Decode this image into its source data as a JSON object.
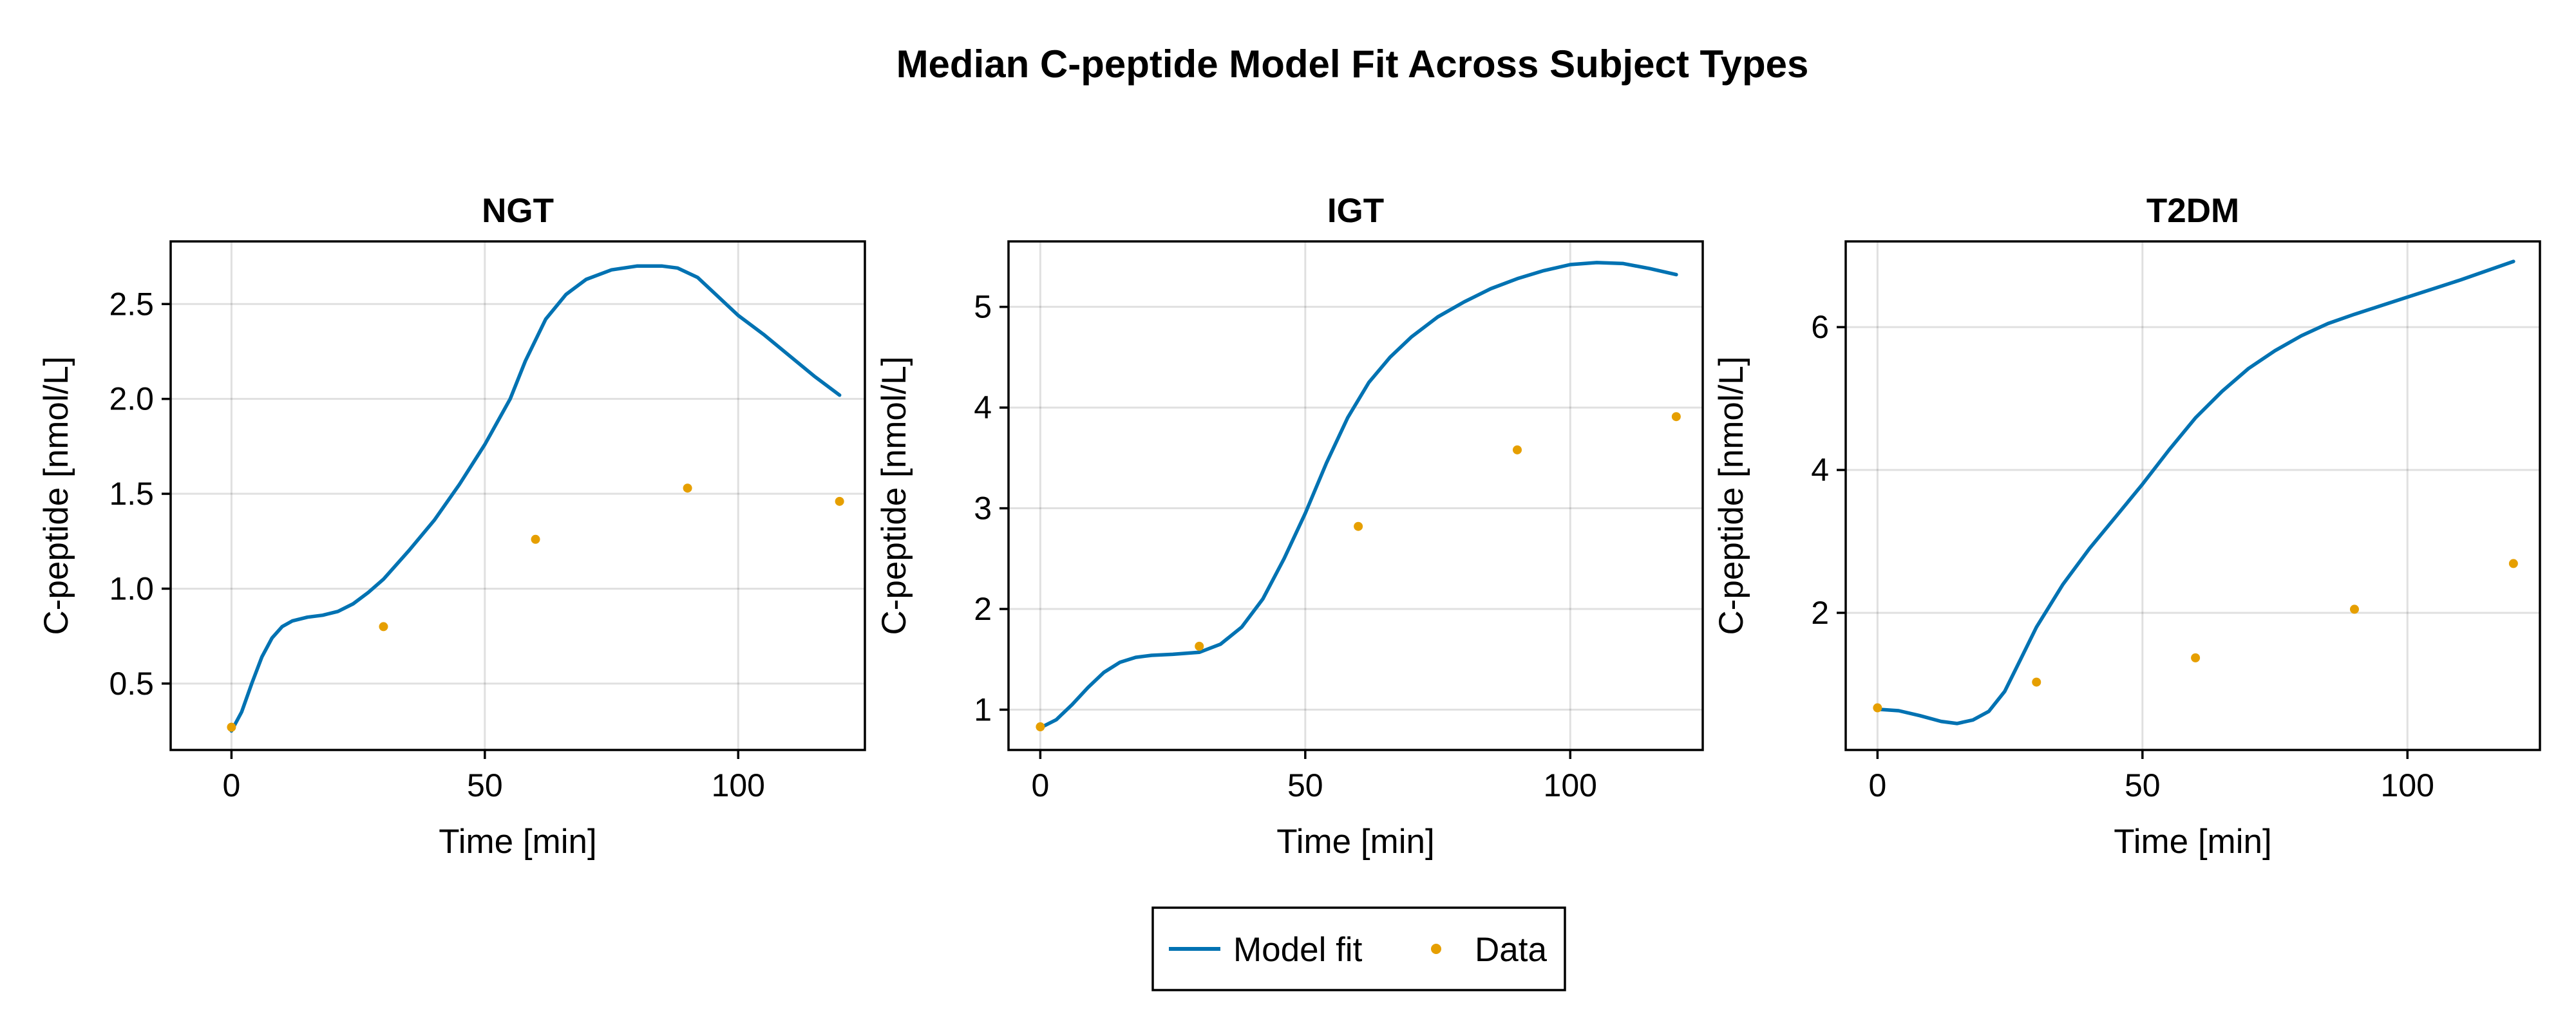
{
  "chart_data": {
    "title": "Median C-peptide Model Fit Across Subject Types",
    "legend": {
      "placement": "bottom-center",
      "entries": [
        {
          "label": "Model fit",
          "kind": "line",
          "color": "#0072b2"
        },
        {
          "label": "Data",
          "kind": "marker",
          "color": "#e69f00"
        }
      ]
    },
    "panels": [
      {
        "type": "line",
        "title": "NGT",
        "xlabel": "Time [min]",
        "ylabel": "C-peptide [nmol/L]",
        "xlim": [
          -12,
          125
        ],
        "ylim": [
          0.15,
          2.83
        ],
        "xticks": [
          0,
          50,
          100
        ],
        "yticks": [
          0.5,
          1.0,
          1.5,
          2.0,
          2.5
        ],
        "ytick_labels": [
          "0.5",
          "1.0",
          "1.5",
          "2.0",
          "2.5"
        ],
        "grid": true,
        "series": [
          {
            "name": "Model fit",
            "type": "line",
            "color": "#0072b2",
            "x": [
              0,
              2,
              4,
              6,
              8,
              10,
              12,
              15,
              18,
              21,
              24,
              27,
              30,
              35,
              40,
              45,
              50,
              55,
              58,
              62,
              66,
              70,
              75,
              80,
              85,
              88,
              92,
              96,
              100,
              105,
              110,
              115,
              120
            ],
            "y": [
              0.25,
              0.35,
              0.5,
              0.64,
              0.74,
              0.8,
              0.83,
              0.85,
              0.86,
              0.88,
              0.92,
              0.98,
              1.05,
              1.2,
              1.36,
              1.55,
              1.76,
              2.0,
              2.2,
              2.42,
              2.55,
              2.63,
              2.68,
              2.7,
              2.7,
              2.69,
              2.64,
              2.54,
              2.44,
              2.34,
              2.23,
              2.12,
              2.02
            ]
          },
          {
            "name": "Data",
            "type": "scatter",
            "color": "#e69f00",
            "x": [
              0,
              30,
              60,
              90,
              120
            ],
            "y": [
              0.27,
              0.8,
              1.26,
              1.53,
              1.46
            ]
          }
        ]
      },
      {
        "type": "line",
        "title": "IGT",
        "xlabel": "Time [min]",
        "ylabel": "C-peptide [nmol/L]",
        "xlim": [
          -6,
          125
        ],
        "ylim": [
          0.6,
          5.65
        ],
        "xticks": [
          0,
          50,
          100
        ],
        "yticks": [
          1,
          2,
          3,
          4,
          5
        ],
        "ytick_labels": [
          "1",
          "2",
          "3",
          "4",
          "5"
        ],
        "grid": true,
        "series": [
          {
            "name": "Model fit",
            "type": "line",
            "color": "#0072b2",
            "x": [
              0,
              3,
              6,
              9,
              12,
              15,
              18,
              21,
              25,
              30,
              34,
              38,
              42,
              46,
              50,
              54,
              58,
              62,
              66,
              70,
              75,
              80,
              85,
              90,
              95,
              100,
              105,
              110,
              115,
              120
            ],
            "y": [
              0.82,
              0.9,
              1.05,
              1.22,
              1.37,
              1.47,
              1.52,
              1.54,
              1.55,
              1.57,
              1.65,
              1.82,
              2.1,
              2.5,
              2.95,
              3.45,
              3.9,
              4.25,
              4.5,
              4.7,
              4.9,
              5.05,
              5.18,
              5.28,
              5.36,
              5.42,
              5.44,
              5.43,
              5.38,
              5.32
            ]
          },
          {
            "name": "Data",
            "type": "scatter",
            "color": "#e69f00",
            "x": [
              0,
              30,
              60,
              90,
              120
            ],
            "y": [
              0.83,
              1.63,
              2.82,
              3.58,
              3.91
            ]
          }
        ]
      },
      {
        "type": "line",
        "title": "T2DM",
        "xlabel": "Time [min]",
        "ylabel": "C-peptide [nmol/L]",
        "xlim": [
          -6,
          125
        ],
        "ylim": [
          0.08,
          7.2
        ],
        "xticks": [
          0,
          50,
          100
        ],
        "yticks": [
          2,
          4,
          6
        ],
        "ytick_labels": [
          "2",
          "4",
          "6"
        ],
        "grid": true,
        "series": [
          {
            "name": "Model fit",
            "type": "line",
            "color": "#0072b2",
            "x": [
              0,
              4,
              8,
              12,
              15,
              18,
              21,
              24,
              27,
              30,
              35,
              40,
              45,
              50,
              55,
              60,
              65,
              70,
              75,
              80,
              85,
              90,
              95,
              100,
              105,
              110,
              115,
              120
            ],
            "y": [
              0.65,
              0.63,
              0.56,
              0.48,
              0.45,
              0.5,
              0.62,
              0.9,
              1.35,
              1.8,
              2.4,
              2.9,
              3.35,
              3.8,
              4.28,
              4.73,
              5.1,
              5.42,
              5.67,
              5.88,
              6.05,
              6.18,
              6.3,
              6.42,
              6.54,
              6.66,
              6.79,
              6.92
            ]
          },
          {
            "name": "Data",
            "type": "scatter",
            "color": "#e69f00",
            "x": [
              0,
              30,
              60,
              90,
              120
            ],
            "y": [
              0.67,
              1.03,
              1.37,
              2.05,
              2.69
            ]
          }
        ]
      }
    ]
  }
}
